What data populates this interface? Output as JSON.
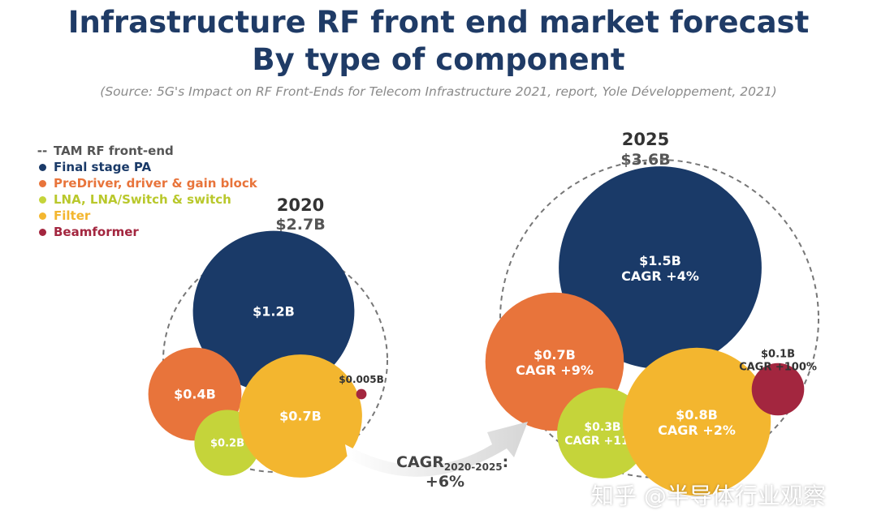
{
  "header": {
    "title_line1": "Infrastructure RF front end market forecast",
    "title_line2": "By type of component",
    "source": "(Source: 5G's Impact on RF Front-Ends for Telecom Infrastructure 2021, report, Yole Développement, 2021)"
  },
  "legend": {
    "tam": {
      "marker": "--",
      "label": "TAM RF front-end",
      "color": "#555555"
    },
    "items": [
      {
        "label": "Final stage PA",
        "color": "#1a3a68",
        "text_color": "#1a3a68"
      },
      {
        "label": "PreDriver, driver & gain block",
        "color": "#e8743b",
        "text_color": "#e8743b"
      },
      {
        "label": "LNA, LNA/Switch & switch",
        "color": "#c5d43a",
        "text_color": "#b9c82c"
      },
      {
        "label": "Filter",
        "color": "#f3b62f",
        "text_color": "#f3b62f"
      },
      {
        "label": "Beamformer",
        "color": "#a3263f",
        "text_color": "#a3263f"
      }
    ]
  },
  "chart_data": {
    "type": "bubble",
    "title": "Infrastructure RF front end market forecast — By type of component",
    "groups": [
      {
        "year": "2020",
        "total_label": "$2.7B",
        "total_value": 2.7,
        "bubbles": [
          {
            "category": "Final stage PA",
            "value": 1.2,
            "label": "$1.2B",
            "cagr": ""
          },
          {
            "category": "PreDriver, driver & gain block",
            "value": 0.4,
            "label": "$0.4B",
            "cagr": ""
          },
          {
            "category": "LNA, LNA/Switch & switch",
            "value": 0.2,
            "label": "$0.2B",
            "cagr": ""
          },
          {
            "category": "Filter",
            "value": 0.7,
            "label": "$0.7B",
            "cagr": ""
          },
          {
            "category": "Beamformer",
            "value": 0.005,
            "label": "$0.005B",
            "cagr": ""
          }
        ]
      },
      {
        "year": "2025",
        "total_label": "$3.6B",
        "total_value": 3.6,
        "bubbles": [
          {
            "category": "Final stage PA",
            "value": 1.5,
            "label": "$1.5B",
            "cagr": "CAGR +4%"
          },
          {
            "category": "PreDriver, driver & gain block",
            "value": 0.7,
            "label": "$0.7B",
            "cagr": "CAGR +9%"
          },
          {
            "category": "LNA, LNA/Switch & switch",
            "value": 0.3,
            "label": "$0.3B",
            "cagr": "CAGR +11%"
          },
          {
            "category": "Filter",
            "value": 0.8,
            "label": "$0.8B",
            "cagr": "CAGR +2%"
          },
          {
            "category": "Beamformer",
            "value": 0.1,
            "label": "$0.1B",
            "cagr": "CAGR +100%"
          }
        ]
      }
    ],
    "overall_cagr": {
      "label": "CAGR",
      "subscript": "2020-2025",
      "suffix": ":",
      "value": "+6%"
    }
  },
  "watermark": "知乎 @半导体行业观察"
}
